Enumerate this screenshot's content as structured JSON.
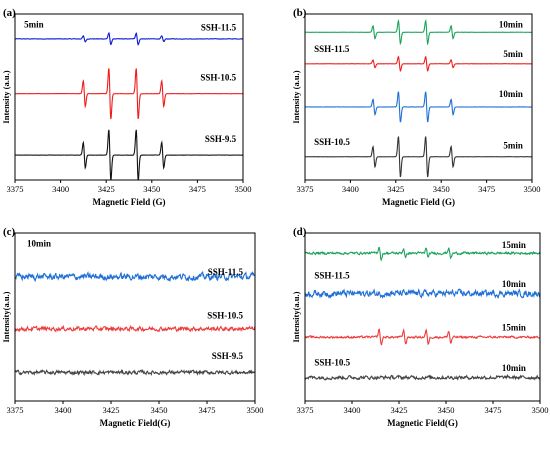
{
  "chart_data": [
    {
      "type": "line",
      "panel_label": "(a)",
      "xlabel": "Magnetic Field (G)",
      "ylabel": "Intensity (a.u.)",
      "xlim": [
        3375,
        3500
      ],
      "xticks": [
        "3375",
        "3400",
        "3425",
        "3450",
        "3475",
        "3500"
      ],
      "annotations": [
        {
          "text": "5min",
          "near": "top-left"
        },
        {
          "text": "SSH-11.5",
          "near": "series-1"
        },
        {
          "text": "SSH-10.5",
          "near": "series-2"
        },
        {
          "text": "SSH-9.5",
          "near": "series-3"
        }
      ],
      "series": [
        {
          "color": "#0a16d8",
          "baseline": 0.85,
          "peaks": [
            {
              "x": 3413,
              "a": 0.22
            },
            {
              "x": 3427,
              "a": 0.45
            },
            {
              "x": 3442,
              "a": 0.45
            },
            {
              "x": 3456,
              "a": 0.22
            }
          ],
          "noise": 0.04
        },
        {
          "color": "#ee1c1c",
          "baseline": 0.52,
          "peaks": [
            {
              "x": 3413,
              "a": 1.0
            },
            {
              "x": 3427,
              "a": 2.0
            },
            {
              "x": 3442,
              "a": 2.0
            },
            {
              "x": 3456,
              "a": 1.0
            }
          ],
          "noise": 0.02
        },
        {
          "color": "#111111",
          "baseline": 0.15,
          "peaks": [
            {
              "x": 3413,
              "a": 1.0
            },
            {
              "x": 3427,
              "a": 2.0
            },
            {
              "x": 3442,
              "a": 2.0
            },
            {
              "x": 3456,
              "a": 1.0
            }
          ],
          "noise": 0.02
        }
      ]
    },
    {
      "type": "line",
      "panel_label": "(b)",
      "xlabel": "Magnetic Field (G)",
      "ylabel": "Intensity (a.u.)",
      "xlim": [
        3375,
        3500
      ],
      "xticks": [
        "3375",
        "3400",
        "3425",
        "3450",
        "3475",
        "3500"
      ],
      "annotations": [
        {
          "text": "10min",
          "near": "series-1"
        },
        {
          "text": "SSH-11.5",
          "near": "series-2-left"
        },
        {
          "text": "5min",
          "near": "series-2"
        },
        {
          "text": "10min",
          "near": "series-3"
        },
        {
          "text": "SSH-10.5",
          "near": "series-4-left"
        },
        {
          "text": "5min",
          "near": "series-4"
        }
      ],
      "series": [
        {
          "color": "#1aa35a",
          "baseline": 0.89,
          "peaks": [
            {
              "x": 3413,
              "a": 0.5
            },
            {
              "x": 3427,
              "a": 0.9
            },
            {
              "x": 3442,
              "a": 0.9
            },
            {
              "x": 3456,
              "a": 0.5
            }
          ],
          "noise": 0.015
        },
        {
          "color": "#ee1c1c",
          "baseline": 0.7,
          "peaks": [
            {
              "x": 3413,
              "a": 0.3
            },
            {
              "x": 3427,
              "a": 0.55
            },
            {
              "x": 3442,
              "a": 0.55
            },
            {
              "x": 3456,
              "a": 0.3
            }
          ],
          "noise": 0.015
        },
        {
          "color": "#1f6fd6",
          "baseline": 0.44,
          "peaks": [
            {
              "x": 3413,
              "a": 0.6
            },
            {
              "x": 3427,
              "a": 1.2
            },
            {
              "x": 3442,
              "a": 1.2
            },
            {
              "x": 3456,
              "a": 0.6
            }
          ],
          "noise": 0.02
        },
        {
          "color": "#333333",
          "baseline": 0.14,
          "peaks": [
            {
              "x": 3413,
              "a": 0.8
            },
            {
              "x": 3427,
              "a": 1.6
            },
            {
              "x": 3442,
              "a": 1.6
            },
            {
              "x": 3456,
              "a": 0.8
            }
          ],
          "noise": 0.015
        }
      ]
    },
    {
      "type": "line",
      "panel_label": "(c)",
      "xlabel": "Magnetic Field(G)",
      "ylabel": "Intensity(a.u.)",
      "xlim": [
        3375,
        3500
      ],
      "xticks": [
        "3375",
        "3400",
        "3425",
        "3450",
        "3475",
        "3500"
      ],
      "annotations": [
        {
          "text": "10min",
          "near": "top-left"
        },
        {
          "text": "SSH-11.5",
          "near": "series-1"
        },
        {
          "text": "SSH-10.5",
          "near": "series-2"
        },
        {
          "text": "SSH-9.5",
          "near": "series-3"
        }
      ],
      "series": [
        {
          "color": "#1f6fd6",
          "baseline": 0.74,
          "peaks": [],
          "noise": 0.55
        },
        {
          "color": "#ee3b3b",
          "baseline": 0.43,
          "peaks": [],
          "noise": 0.35
        },
        {
          "color": "#444444",
          "baseline": 0.17,
          "peaks": [],
          "noise": 0.32
        }
      ]
    },
    {
      "type": "line",
      "panel_label": "(d)",
      "xlabel": "Magnetic Field(G)",
      "ylabel": "Intensity(a.u.)",
      "xlim": [
        3375,
        3500
      ],
      "xticks": [
        "3375",
        "3400",
        "3425",
        "3450",
        "3475",
        "3500"
      ],
      "annotations": [
        {
          "text": "15min",
          "near": "series-1"
        },
        {
          "text": "SSH-11.5",
          "near": "series-2-left"
        },
        {
          "text": "10min",
          "near": "series-2"
        },
        {
          "text": "15min",
          "near": "series-3"
        },
        {
          "text": "SSH-10.5",
          "near": "series-4-left"
        },
        {
          "text": "10min",
          "near": "series-4"
        }
      ],
      "series": [
        {
          "color": "#1aa35a",
          "baseline": 0.88,
          "peaks": [
            {
              "x": 3415,
              "a": 0.5
            },
            {
              "x": 3428,
              "a": 0.35
            },
            {
              "x": 3440,
              "a": 0.35
            },
            {
              "x": 3452,
              "a": 0.4
            }
          ],
          "noise": 0.2
        },
        {
          "color": "#1f6fd6",
          "baseline": 0.64,
          "peaks": [],
          "noise": 0.55
        },
        {
          "color": "#ee3b3b",
          "baseline": 0.38,
          "peaks": [
            {
              "x": 3415,
              "a": 0.6
            },
            {
              "x": 3428,
              "a": 0.5
            },
            {
              "x": 3440,
              "a": 0.5
            },
            {
              "x": 3452,
              "a": 0.45
            }
          ],
          "noise": 0.18
        },
        {
          "color": "#444444",
          "baseline": 0.14,
          "peaks": [],
          "noise": 0.3
        }
      ]
    }
  ]
}
